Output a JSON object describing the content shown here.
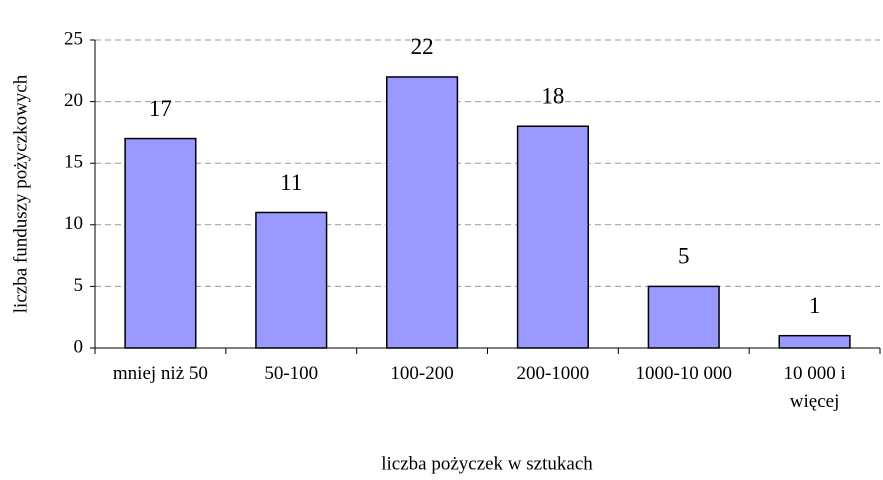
{
  "chart_data": {
    "type": "bar",
    "categories": [
      "mniej niż 50",
      "50-100",
      "100-200",
      "200-1000",
      "1000-10 000",
      "10 000 i więcej"
    ],
    "values": [
      17,
      11,
      22,
      18,
      5,
      1
    ],
    "color": "#9999ff",
    "xlabel": "liczba pożyczek w sztukach",
    "ylabel": "liczba funduszy pożyczkowych",
    "ylim": [
      0,
      25
    ],
    "yticks": [
      0,
      5,
      10,
      15,
      20,
      25
    ],
    "grid": true
  }
}
